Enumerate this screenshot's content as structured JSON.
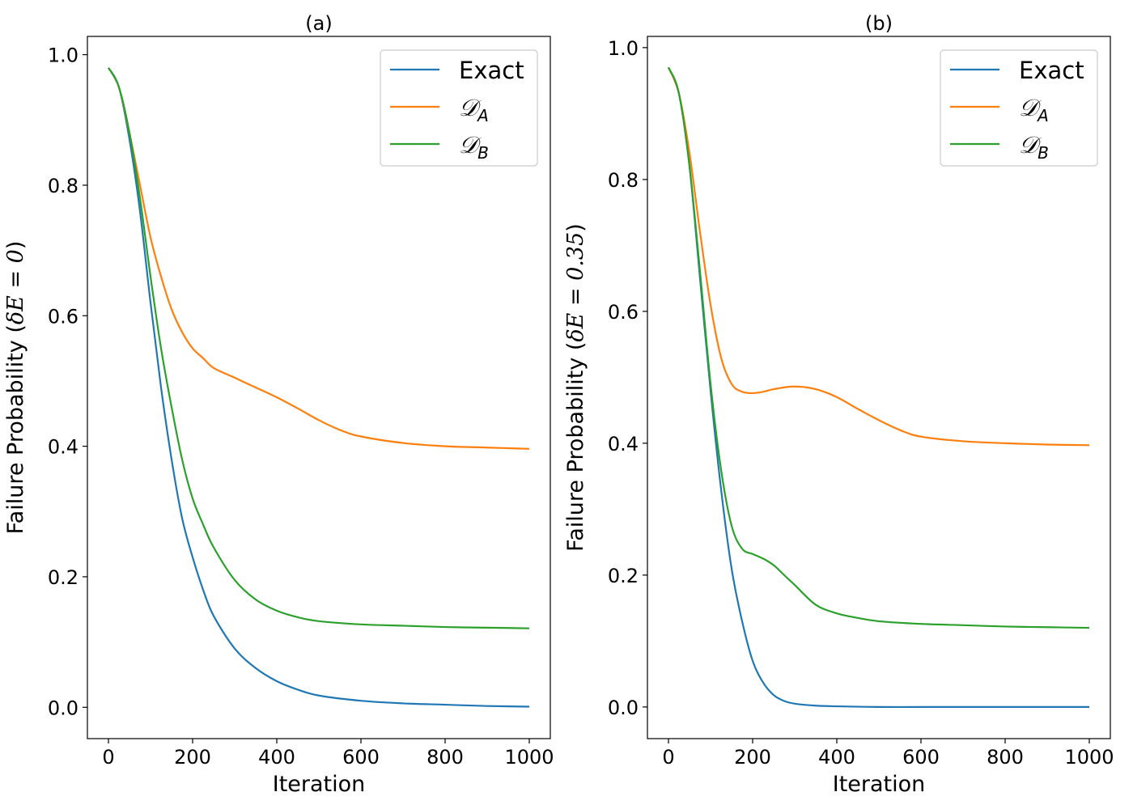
{
  "chart_data": [
    {
      "type": "line",
      "title": "(a)",
      "xlabel": "Iteration",
      "ylabel": "Failure Probability (δE = 0)",
      "ylabel_parts": {
        "prefix": "Failure Probability (",
        "math": "δE = 0",
        "suffix": ")"
      },
      "xlim": [
        -50,
        1050
      ],
      "ylim": [
        -0.048,
        1.028
      ],
      "xticks": [
        0,
        200,
        400,
        600,
        800,
        1000
      ],
      "xtick_labels": [
        "0",
        "200",
        "400",
        "600",
        "800",
        "1000"
      ],
      "yticks": [
        0.0,
        0.2,
        0.4,
        0.6,
        0.8,
        1.0
      ],
      "ytick_labels": [
        "0.0",
        "0.2",
        "0.4",
        "0.6",
        "0.8",
        "1.0"
      ],
      "grid": false,
      "legend_position": "top-right",
      "series": [
        {
          "name": "Exact",
          "color": "#1f77b4",
          "x": [
            0,
            25,
            50,
            75,
            100,
            125,
            150,
            175,
            200,
            225,
            250,
            300,
            350,
            400,
            450,
            500,
            600,
            700,
            800,
            900,
            1000
          ],
          "y": [
            0.98,
            0.95,
            0.87,
            0.76,
            0.62,
            0.49,
            0.38,
            0.29,
            0.23,
            0.18,
            0.14,
            0.09,
            0.06,
            0.04,
            0.027,
            0.018,
            0.01,
            0.006,
            0.004,
            0.002,
            0.001
          ]
        },
        {
          "name": "D_A",
          "label_main": "𝒟",
          "label_sub": "A",
          "color": "#ff7f0e",
          "x": [
            0,
            25,
            50,
            75,
            100,
            125,
            150,
            175,
            200,
            225,
            250,
            300,
            350,
            400,
            450,
            500,
            550,
            600,
            700,
            800,
            900,
            1000
          ],
          "y": [
            0.98,
            0.95,
            0.88,
            0.8,
            0.72,
            0.66,
            0.61,
            0.575,
            0.55,
            0.535,
            0.52,
            0.505,
            0.49,
            0.475,
            0.458,
            0.44,
            0.425,
            0.415,
            0.405,
            0.4,
            0.398,
            0.396
          ]
        },
        {
          "name": "D_B",
          "label_main": "𝒟",
          "label_sub": "B",
          "color": "#2ca02c",
          "x": [
            0,
            25,
            50,
            75,
            100,
            125,
            150,
            175,
            200,
            225,
            250,
            300,
            350,
            400,
            450,
            500,
            600,
            700,
            800,
            900,
            1000
          ],
          "y": [
            0.98,
            0.95,
            0.88,
            0.78,
            0.66,
            0.55,
            0.46,
            0.38,
            0.32,
            0.28,
            0.245,
            0.195,
            0.165,
            0.148,
            0.138,
            0.132,
            0.127,
            0.125,
            0.123,
            0.122,
            0.121
          ]
        }
      ]
    },
    {
      "type": "line",
      "title": "(b)",
      "xlabel": "Iteration",
      "ylabel": "Failure Probability (δE = 0.35)",
      "ylabel_parts": {
        "prefix": "Failure Probability (",
        "math": "δE = 0.35",
        "suffix": ")"
      },
      "xlim": [
        -50,
        1050
      ],
      "ylim": [
        -0.048,
        1.017
      ],
      "xticks": [
        0,
        200,
        400,
        600,
        800,
        1000
      ],
      "xtick_labels": [
        "0",
        "200",
        "400",
        "600",
        "800",
        "1000"
      ],
      "yticks": [
        0.0,
        0.2,
        0.4,
        0.6,
        0.8,
        1.0
      ],
      "ytick_labels": [
        "0.0",
        "0.2",
        "0.4",
        "0.6",
        "0.8",
        "1.0"
      ],
      "grid": false,
      "legend_position": "top-right",
      "series": [
        {
          "name": "Exact",
          "color": "#1f77b4",
          "x": [
            0,
            25,
            50,
            75,
            100,
            125,
            150,
            175,
            200,
            225,
            250,
            275,
            300,
            350,
            400,
            500,
            600,
            700,
            800,
            900,
            1000
          ],
          "y": [
            0.97,
            0.93,
            0.82,
            0.65,
            0.48,
            0.33,
            0.21,
            0.13,
            0.07,
            0.037,
            0.018,
            0.009,
            0.005,
            0.002,
            0.001,
            0.0,
            0.0,
            0.0,
            0.0,
            0.0,
            0.0
          ]
        },
        {
          "name": "D_A",
          "label_main": "𝒟",
          "label_sub": "A",
          "color": "#ff7f0e",
          "x": [
            0,
            25,
            50,
            75,
            100,
            125,
            150,
            175,
            200,
            225,
            250,
            300,
            350,
            400,
            450,
            500,
            550,
            600,
            700,
            800,
            900,
            1000
          ],
          "y": [
            0.97,
            0.93,
            0.84,
            0.72,
            0.61,
            0.53,
            0.49,
            0.478,
            0.476,
            0.478,
            0.482,
            0.486,
            0.482,
            0.47,
            0.452,
            0.435,
            0.42,
            0.41,
            0.403,
            0.4,
            0.398,
            0.397
          ]
        },
        {
          "name": "D_B",
          "label_main": "𝒟",
          "label_sub": "B",
          "color": "#2ca02c",
          "x": [
            0,
            25,
            50,
            75,
            100,
            125,
            150,
            175,
            200,
            225,
            250,
            275,
            300,
            350,
            400,
            450,
            500,
            600,
            700,
            800,
            900,
            1000
          ],
          "y": [
            0.97,
            0.93,
            0.82,
            0.66,
            0.49,
            0.36,
            0.275,
            0.24,
            0.232,
            0.225,
            0.215,
            0.2,
            0.185,
            0.155,
            0.142,
            0.135,
            0.13,
            0.126,
            0.124,
            0.122,
            0.121,
            0.12
          ]
        }
      ]
    }
  ]
}
